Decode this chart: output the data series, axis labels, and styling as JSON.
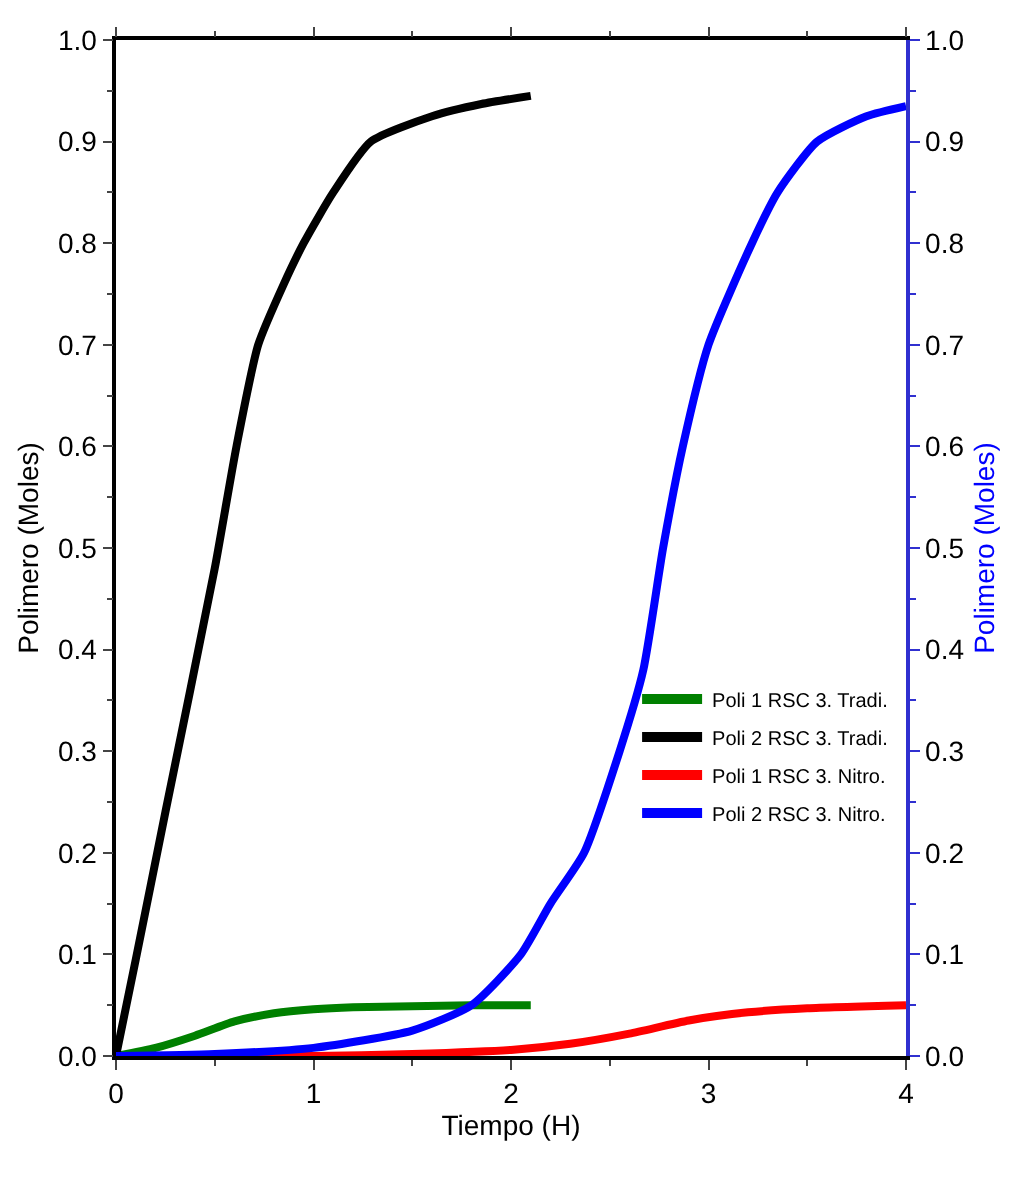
{
  "chart_data": {
    "type": "line",
    "xlabel": "Tiempo (H)",
    "ylabel": "Polimero (Moles)",
    "y2label": "Polimero (Moles)",
    "xlim": [
      0,
      4
    ],
    "xticks": [
      0,
      1,
      2,
      3,
      4
    ],
    "ylim": [
      0,
      1
    ],
    "yticks": [
      {
        "value": 0,
        "label": "0.0"
      },
      0.1,
      0.2,
      0.3,
      0.4,
      0.5,
      0.6,
      0.7,
      0.8,
      0.9,
      {
        "value": 1,
        "label": "1.0"
      }
    ],
    "y2lim": [
      0,
      1
    ],
    "y2ticks": [
      {
        "value": 0,
        "label": "0.0"
      },
      0.1,
      0.2,
      0.3,
      0.4,
      0.5,
      0.6,
      0.7,
      0.8,
      0.9,
      {
        "value": 1,
        "label": "1.0"
      }
    ],
    "legend": "right",
    "line_style": "solid",
    "series": [
      {
        "name": "Poli 1 RSC 3. Tradi.",
        "color": "#008000",
        "x": [
          0,
          0.2,
          0.4,
          0.6,
          0.8,
          1.0,
          1.2,
          1.5,
          1.8,
          2.1
        ],
        "values": [
          0,
          0.008,
          0.02,
          0.034,
          0.042,
          0.046,
          0.048,
          0.049,
          0.05,
          0.05
        ]
      },
      {
        "name": "Poli 2 RSC 3. Tradi.",
        "color": "#000000",
        "x": [
          0,
          0.1,
          0.25,
          0.5,
          0.61,
          0.72,
          0.85,
          0.95,
          1.1,
          1.29,
          1.6,
          1.85,
          2.1
        ],
        "values": [
          0,
          0.095,
          0.24,
          0.48,
          0.6,
          0.7,
          0.76,
          0.8,
          0.85,
          0.9,
          0.925,
          0.937,
          0.945
        ]
      },
      {
        "name": "Poli 1 RSC 3. Nitro.",
        "color": "#ff0000",
        "x": [
          0,
          1.0,
          1.5,
          2.0,
          2.3,
          2.6,
          2.9,
          3.2,
          3.5,
          4.0
        ],
        "values": [
          0,
          0,
          0.002,
          0.006,
          0.012,
          0.022,
          0.035,
          0.043,
          0.047,
          0.05
        ]
      },
      {
        "name": "Poli 2 RSC 3. Nitro.",
        "color": "#0000ff",
        "axis": "y2",
        "x": [
          0,
          0.5,
          1.0,
          1.5,
          1.8,
          2.05,
          2.2,
          2.37,
          2.55,
          2.67,
          2.77,
          2.87,
          3.0,
          3.22,
          3.35,
          3.55,
          3.8,
          4.0
        ],
        "values": [
          0,
          0.002,
          0.008,
          0.025,
          0.05,
          0.1,
          0.15,
          0.2,
          0.3,
          0.38,
          0.5,
          0.6,
          0.7,
          0.8,
          0.85,
          0.9,
          0.925,
          0.935
        ]
      }
    ]
  }
}
